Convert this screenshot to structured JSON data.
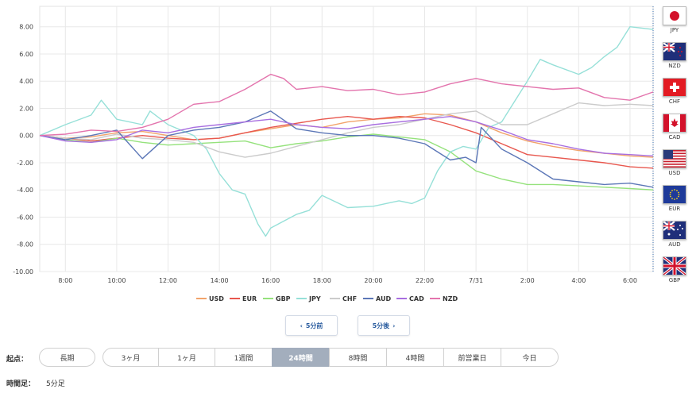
{
  "chart_data": {
    "type": "line",
    "x_ticks": [
      "8:00",
      "10:00",
      "12:00",
      "14:00",
      "16:00",
      "18:00",
      "20:00",
      "22:00",
      "7/31",
      "2:00",
      "4:00",
      "6:00"
    ],
    "y_ticks": [
      "8.00",
      "6.00",
      "4.00",
      "2.00",
      "0.00",
      "-2.00",
      "-4.00",
      "-6.00",
      "-8.00",
      "-10.00"
    ],
    "ylim": [
      -10,
      9.5
    ],
    "xlim": [
      7.0,
      30.9
    ],
    "grid": true,
    "legend_position": "bottom",
    "series": [
      {
        "name": "USD",
        "color": "#f2a36b",
        "x": [
          7.0,
          8.0,
          9.0,
          10.0,
          11.0,
          12.0,
          13.0,
          14.0,
          15.0,
          16.0,
          17.0,
          18.0,
          19.0,
          20.0,
          21.0,
          22.0,
          23.0,
          24.0,
          25.0,
          26.0,
          27.0,
          28.0,
          29.0,
          30.0,
          30.9
        ],
        "y": [
          0.0,
          -0.2,
          -0.1,
          0.2,
          0.3,
          0.0,
          -0.3,
          -0.2,
          0.2,
          0.5,
          0.8,
          0.6,
          1.0,
          1.2,
          1.3,
          1.6,
          1.5,
          1.0,
          0.2,
          -0.4,
          -0.8,
          -1.1,
          -1.3,
          -1.5,
          -1.6
        ]
      },
      {
        "name": "EUR",
        "color": "#e8574e",
        "x": [
          7.0,
          8.0,
          9.0,
          10.0,
          11.0,
          12.0,
          13.0,
          14.0,
          15.0,
          16.0,
          17.0,
          18.0,
          19.0,
          20.0,
          21.0,
          22.0,
          23.0,
          24.0,
          25.0,
          26.0,
          27.0,
          28.0,
          29.0,
          30.0,
          30.9
        ],
        "y": [
          0.0,
          -0.2,
          -0.4,
          -0.2,
          0.0,
          -0.2,
          -0.3,
          -0.2,
          0.2,
          0.6,
          0.9,
          1.2,
          1.4,
          1.2,
          1.4,
          1.3,
          0.8,
          0.2,
          -0.6,
          -1.4,
          -1.6,
          -1.8,
          -2.0,
          -2.3,
          -2.4
        ]
      },
      {
        "name": "GBP",
        "color": "#95e27c",
        "x": [
          7.0,
          8.0,
          9.0,
          10.0,
          11.0,
          12.0,
          13.0,
          14.0,
          15.0,
          16.0,
          17.0,
          18.0,
          19.0,
          20.0,
          21.0,
          22.0,
          23.0,
          24.0,
          25.0,
          26.0,
          27.0,
          28.0,
          29.0,
          30.0,
          30.9
        ],
        "y": [
          0.0,
          -0.3,
          -0.5,
          -0.2,
          -0.5,
          -0.7,
          -0.6,
          -0.5,
          -0.4,
          -0.9,
          -0.6,
          -0.4,
          -0.1,
          0.1,
          -0.1,
          -0.3,
          -1.2,
          -2.6,
          -3.2,
          -3.6,
          -3.6,
          -3.7,
          -3.8,
          -3.9,
          -4.0
        ]
      },
      {
        "name": "JPY",
        "color": "#96e0d8",
        "x": [
          7.0,
          8.0,
          9.0,
          9.4,
          10.0,
          11.0,
          11.3,
          12.0,
          13.0,
          13.5,
          14.0,
          14.5,
          15.0,
          15.5,
          15.8,
          16.0,
          16.5,
          17.0,
          17.5,
          18.0,
          19.0,
          20.0,
          21.0,
          21.5,
          22.0,
          22.5,
          23.0,
          23.5,
          24.0,
          24.5,
          25.0,
          26.0,
          26.5,
          27.0,
          28.0,
          28.5,
          29.0,
          29.5,
          30.0,
          30.9
        ],
        "y": [
          0.0,
          0.8,
          1.5,
          2.6,
          1.2,
          0.8,
          1.8,
          0.8,
          0.0,
          -1.0,
          -2.8,
          -4.0,
          -4.3,
          -6.5,
          -7.4,
          -6.8,
          -6.3,
          -5.8,
          -5.5,
          -4.4,
          -5.3,
          -5.2,
          -4.8,
          -5.0,
          -4.6,
          -2.6,
          -1.2,
          -0.8,
          -1.0,
          0.6,
          1.0,
          4.0,
          5.6,
          5.2,
          4.5,
          5.0,
          5.8,
          6.5,
          8.0,
          7.8
        ]
      },
      {
        "name": "CHF",
        "color": "#cbcbcb",
        "x": [
          7.0,
          8.0,
          9.0,
          10.0,
          11.0,
          12.0,
          13.0,
          14.0,
          15.0,
          16.0,
          17.0,
          18.0,
          19.0,
          20.0,
          21.0,
          22.0,
          23.0,
          24.0,
          25.0,
          26.0,
          27.0,
          28.0,
          29.0,
          30.0,
          30.9
        ],
        "y": [
          0.0,
          -0.2,
          -0.3,
          0.1,
          -0.2,
          -0.3,
          -0.5,
          -1.2,
          -1.6,
          -1.3,
          -0.8,
          -0.3,
          0.2,
          0.6,
          0.8,
          1.2,
          1.6,
          1.8,
          0.8,
          0.8,
          1.6,
          2.4,
          2.2,
          2.3,
          2.2
        ]
      },
      {
        "name": "AUD",
        "color": "#5c77b7",
        "x": [
          7.0,
          8.0,
          9.0,
          10.0,
          11.0,
          12.0,
          13.0,
          14.0,
          15.0,
          16.0,
          17.0,
          18.0,
          19.0,
          20.0,
          21.0,
          22.0,
          23.0,
          23.6,
          24.0,
          24.2,
          25.0,
          26.0,
          27.0,
          28.0,
          29.0,
          30.0,
          30.9
        ],
        "y": [
          0.0,
          -0.3,
          0.0,
          0.4,
          -1.7,
          0.0,
          0.4,
          0.6,
          1.0,
          1.8,
          0.5,
          0.2,
          0.0,
          0.0,
          -0.2,
          -0.6,
          -1.8,
          -1.6,
          -2.0,
          0.6,
          -1.0,
          -2.0,
          -3.2,
          -3.4,
          -3.6,
          -3.5,
          -3.8
        ]
      },
      {
        "name": "CAD",
        "color": "#a86ee0",
        "x": [
          7.0,
          8.0,
          9.0,
          10.0,
          11.0,
          12.0,
          13.0,
          14.0,
          15.0,
          16.0,
          17.0,
          18.0,
          19.0,
          20.0,
          21.0,
          22.0,
          23.0,
          24.0,
          25.0,
          26.0,
          27.0,
          28.0,
          29.0,
          30.0,
          30.9
        ],
        "y": [
          0.0,
          -0.4,
          -0.5,
          -0.3,
          0.4,
          0.2,
          0.6,
          0.8,
          1.0,
          1.2,
          0.8,
          0.6,
          0.5,
          0.8,
          1.0,
          1.2,
          1.4,
          1.0,
          0.4,
          -0.3,
          -0.6,
          -1.0,
          -1.3,
          -1.4,
          -1.5
        ]
      },
      {
        "name": "NZD",
        "color": "#e374ad",
        "x": [
          7.0,
          8.0,
          9.0,
          10.0,
          11.0,
          12.0,
          13.0,
          14.0,
          15.0,
          16.0,
          16.5,
          17.0,
          18.0,
          19.0,
          20.0,
          21.0,
          22.0,
          23.0,
          24.0,
          25.0,
          26.0,
          27.0,
          28.0,
          29.0,
          30.0,
          30.9
        ],
        "y": [
          0.0,
          0.1,
          0.4,
          0.3,
          0.6,
          1.2,
          2.3,
          2.5,
          3.4,
          4.5,
          4.2,
          3.4,
          3.6,
          3.3,
          3.4,
          3.0,
          3.2,
          3.8,
          4.2,
          3.8,
          3.6,
          3.4,
          3.5,
          2.8,
          2.6,
          3.2
        ]
      }
    ]
  },
  "flags": [
    {
      "code": "JPY",
      "icon": "japan-flag-icon"
    },
    {
      "code": "NZD",
      "icon": "new-zealand-flag-icon"
    },
    {
      "code": "CHF",
      "icon": "switzerland-flag-icon"
    },
    {
      "code": "CAD",
      "icon": "canada-flag-icon"
    },
    {
      "code": "USD",
      "icon": "usa-flag-icon"
    },
    {
      "code": "EUR",
      "icon": "eu-flag-icon"
    },
    {
      "code": "AUD",
      "icon": "australia-flag-icon"
    },
    {
      "code": "GBP",
      "icon": "uk-flag-icon"
    }
  ],
  "navigation": {
    "prev_label": "5分前",
    "next_label": "5分後",
    "prev_icon": "‹",
    "next_icon": "›"
  },
  "range": {
    "label": "起点：",
    "options": [
      "長期",
      "3ヶ月",
      "1ヶ月",
      "1週間",
      "24時間",
      "8時間",
      "4時間",
      "前営業日",
      "今日"
    ],
    "selected": "24時間"
  },
  "timeframe": {
    "label": "時間足：",
    "value": "5分足"
  },
  "colors": {
    "grid": "#e8e8e8",
    "axis_text": "#444444",
    "active_segment": "#a3aebd",
    "nav_text": "#2b5d9f"
  }
}
